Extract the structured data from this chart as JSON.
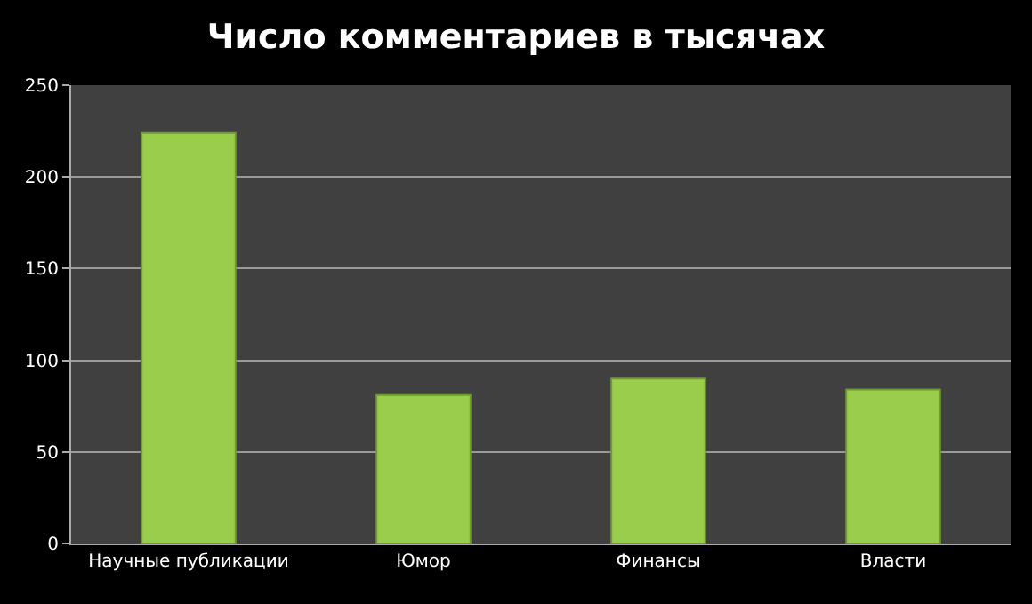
{
  "chart_data": {
    "type": "bar",
    "title": "Число комментариев в тысячах",
    "categories": [
      "Научные публикации",
      "Юмор",
      "Финансы",
      "Власти"
    ],
    "values": [
      224,
      81,
      90,
      84
    ],
    "color": "#9acd4c",
    "ylim": [
      0,
      250
    ],
    "yticks": [
      0,
      50,
      100,
      150,
      200,
      250
    ],
    "grid": "y",
    "legend": false
  }
}
